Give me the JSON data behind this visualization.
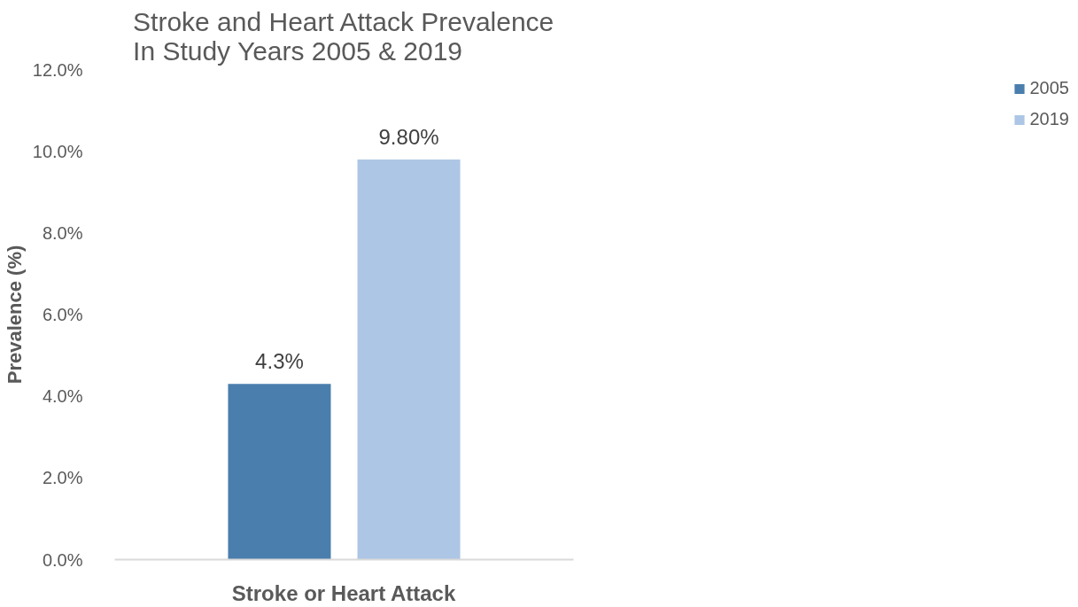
{
  "chart_data": {
    "type": "bar",
    "title": "Stroke and Heart Attack Prevalence\nIn Study Years 2005 & 2019",
    "ylabel": "Prevalence (%)",
    "categories": [
      "Stroke or Heart Attack"
    ],
    "series": [
      {
        "name": "2005",
        "color": "#4a7ead",
        "values": [
          4.3
        ],
        "value_labels": [
          "4.3%"
        ]
      },
      {
        "name": "2019",
        "color": "#adc6e5",
        "values": [
          9.8
        ],
        "value_labels": [
          "9.80%"
        ]
      }
    ],
    "ylim": [
      0,
      12
    ],
    "yticks": [
      {
        "value": 0,
        "label": "0.0%"
      },
      {
        "value": 2,
        "label": "2.0%"
      },
      {
        "value": 4,
        "label": "4.0%"
      },
      {
        "value": 6,
        "label": "6.0%"
      },
      {
        "value": 8,
        "label": "8.0%"
      },
      {
        "value": 10,
        "label": "10.0%"
      },
      {
        "value": 12,
        "label": "12.0%"
      }
    ],
    "grid": false,
    "legend": "right"
  }
}
